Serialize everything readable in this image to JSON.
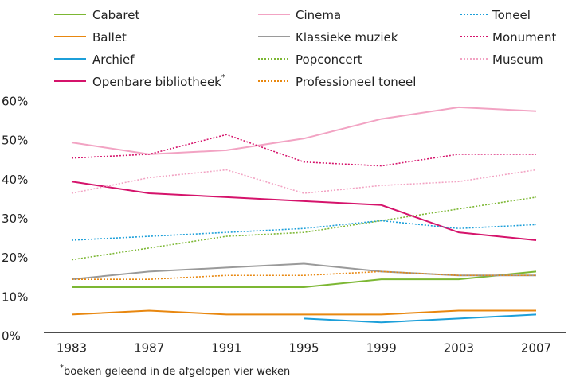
{
  "chart_data": {
    "type": "line",
    "categories": [
      "1983",
      "1987",
      "1991",
      "1995",
      "1999",
      "2003",
      "2007"
    ],
    "ylim": [
      0,
      60
    ],
    "yticks": [
      {
        "value": 0,
        "label": "0%"
      },
      {
        "value": 10,
        "label": "10%"
      },
      {
        "value": 20,
        "label": "20%"
      },
      {
        "value": 30,
        "label": "30%"
      },
      {
        "value": 40,
        "label": "40%"
      },
      {
        "value": 50,
        "label": "50%"
      },
      {
        "value": 60,
        "label": "60%"
      }
    ],
    "grid": false,
    "legend": "top",
    "footnote": {
      "marker": "*",
      "text": "boeken geleend in de afgelopen vier weken"
    },
    "series": [
      {
        "name": "Cabaret",
        "color": "#7cb733",
        "style": "solid",
        "values": [
          12,
          12,
          12,
          12,
          14,
          14,
          16
        ]
      },
      {
        "name": "Ballet",
        "color": "#e8870f",
        "style": "solid",
        "values": [
          5,
          6,
          5,
          5,
          5,
          6,
          6
        ]
      },
      {
        "name": "Archief",
        "color": "#1c9fd9",
        "style": "solid",
        "values": [
          null,
          null,
          null,
          4,
          3,
          4,
          5
        ]
      },
      {
        "name": "Openbare bibliotheek",
        "color": "#d5136b",
        "style": "solid",
        "footnote": true,
        "values": [
          39,
          36,
          35,
          34,
          33,
          26,
          24
        ]
      },
      {
        "name": "Cinema",
        "color": "#f2a3c3",
        "style": "solid",
        "values": [
          49,
          46,
          47,
          50,
          55,
          58,
          57
        ]
      },
      {
        "name": "Klassieke muziek",
        "color": "#9a9a9a",
        "style": "solid",
        "values": [
          14,
          16,
          17,
          18,
          16,
          15,
          15
        ]
      },
      {
        "name": "Popconcert",
        "color": "#7cb733",
        "style": "dotted",
        "values": [
          19,
          22,
          25,
          26,
          29,
          32,
          35
        ]
      },
      {
        "name": "Professioneel toneel",
        "color": "#e8870f",
        "style": "dotted",
        "values": [
          14,
          14,
          15,
          15,
          16,
          15,
          15
        ]
      },
      {
        "name": "Toneel",
        "color": "#1c9fd9",
        "style": "dotted",
        "values": [
          24,
          25,
          26,
          27,
          29,
          27,
          28
        ]
      },
      {
        "name": "Monument",
        "color": "#d5136b",
        "style": "dotted",
        "values": [
          45,
          46,
          51,
          44,
          43,
          46,
          46
        ]
      },
      {
        "name": "Museum",
        "color": "#f2a3c3",
        "style": "dotted",
        "values": [
          36,
          40,
          42,
          36,
          38,
          39,
          42
        ]
      }
    ]
  }
}
